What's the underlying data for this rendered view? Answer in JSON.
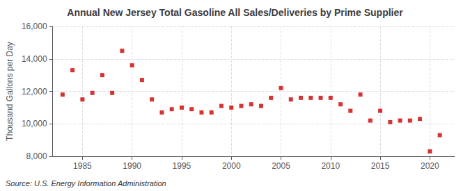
{
  "chart_data": {
    "type": "scatter",
    "title": "Annual New Jersey Total Gasoline All Sales/Deliveries by Prime Supplier",
    "ylabel": "Thousand Gallons per Day",
    "source": "Source: U.S. Energy Information Administration",
    "x": [
      1983,
      1984,
      1985,
      1986,
      1987,
      1988,
      1989,
      1990,
      1991,
      1992,
      1993,
      1994,
      1995,
      1996,
      1997,
      1998,
      1999,
      2000,
      2001,
      2002,
      2003,
      2004,
      2005,
      2006,
      2007,
      2008,
      2009,
      2010,
      2011,
      2012,
      2013,
      2014,
      2015,
      2016,
      2017,
      2018,
      2019,
      2020,
      2021
    ],
    "values": [
      11800,
      13300,
      11500,
      11900,
      13000,
      11900,
      14500,
      13600,
      12700,
      11500,
      10700,
      10900,
      11000,
      10900,
      10700,
      10700,
      11100,
      11000,
      11100,
      11200,
      11100,
      11600,
      12200,
      11500,
      11600,
      11600,
      11600,
      11600,
      11200,
      10800,
      11800,
      10200,
      10800,
      10100,
      10200,
      10200,
      10300,
      8300,
      9300
    ],
    "color": "#cc0000",
    "marker": "square",
    "xlim": [
      1982,
      2022.5
    ],
    "xticks": [
      1985,
      1990,
      1995,
      2000,
      2005,
      2010,
      2015,
      2020
    ],
    "ylim": [
      8000,
      16000
    ],
    "yticks": [
      {
        "value": 8000,
        "label": "8,000"
      },
      {
        "value": 10000,
        "label": "10,000"
      },
      {
        "value": 12000,
        "label": "12,000"
      },
      {
        "value": 14000,
        "label": "14,000"
      },
      {
        "value": 16000,
        "label": "16,000"
      }
    ],
    "grid": true
  }
}
